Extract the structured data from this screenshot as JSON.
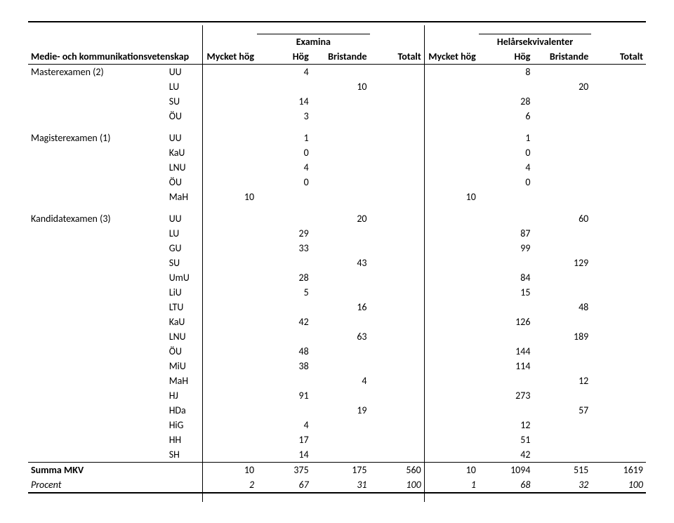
{
  "header": {
    "group1": "Examina",
    "group2": "Helårsekvivalenter",
    "title": "Medie- och kommunikationsvetenskap",
    "cols": [
      "Mycket hög",
      "Hög",
      "Bristande",
      "Totalt",
      "Mycket hög",
      "Hög",
      "Bristande",
      "Totalt"
    ]
  },
  "sections": [
    {
      "name": "Masterexamen (2)",
      "rows": [
        {
          "uni": "UU",
          "v": [
            "",
            "4",
            "",
            "",
            "",
            "8",
            "",
            ""
          ]
        },
        {
          "uni": "LU",
          "v": [
            "",
            "",
            "10",
            "",
            "",
            "",
            "20",
            ""
          ]
        },
        {
          "uni": "SU",
          "v": [
            "",
            "14",
            "",
            "",
            "",
            "28",
            "",
            ""
          ]
        },
        {
          "uni": "ÖU",
          "v": [
            "",
            "3",
            "",
            "",
            "",
            "6",
            "",
            ""
          ]
        }
      ]
    },
    {
      "name": "Magisterexamen (1)",
      "rows": [
        {
          "uni": "UU",
          "v": [
            "",
            "1",
            "",
            "",
            "",
            "1",
            "",
            ""
          ]
        },
        {
          "uni": "KaU",
          "v": [
            "",
            "0",
            "",
            "",
            "",
            "0",
            "",
            ""
          ]
        },
        {
          "uni": "LNU",
          "v": [
            "",
            "4",
            "",
            "",
            "",
            "4",
            "",
            ""
          ]
        },
        {
          "uni": "ÖU",
          "v": [
            "",
            "0",
            "",
            "",
            "",
            "0",
            "",
            ""
          ]
        },
        {
          "uni": "MaH",
          "v": [
            "10",
            "",
            "",
            "",
            "10",
            "",
            "",
            ""
          ]
        }
      ]
    },
    {
      "name": "Kandidatexamen (3)",
      "rows": [
        {
          "uni": "UU",
          "v": [
            "",
            "",
            "20",
            "",
            "",
            "",
            "60",
            ""
          ]
        },
        {
          "uni": "LU",
          "v": [
            "",
            "29",
            "",
            "",
            "",
            "87",
            "",
            ""
          ]
        },
        {
          "uni": "GU",
          "v": [
            "",
            "33",
            "",
            "",
            "",
            "99",
            "",
            ""
          ]
        },
        {
          "uni": "SU",
          "v": [
            "",
            "",
            "43",
            "",
            "",
            "",
            "129",
            ""
          ]
        },
        {
          "uni": "UmU",
          "v": [
            "",
            "28",
            "",
            "",
            "",
            "84",
            "",
            ""
          ]
        },
        {
          "uni": "LiU",
          "v": [
            "",
            "5",
            "",
            "",
            "",
            "15",
            "",
            ""
          ]
        },
        {
          "uni": "LTU",
          "v": [
            "",
            "",
            "16",
            "",
            "",
            "",
            "48",
            ""
          ]
        },
        {
          "uni": "KaU",
          "v": [
            "",
            "42",
            "",
            "",
            "",
            "126",
            "",
            ""
          ]
        },
        {
          "uni": "LNU",
          "v": [
            "",
            "",
            "63",
            "",
            "",
            "",
            "189",
            ""
          ]
        },
        {
          "uni": "ÖU",
          "v": [
            "",
            "48",
            "",
            "",
            "",
            "144",
            "",
            ""
          ]
        },
        {
          "uni": "MiU",
          "v": [
            "",
            "38",
            "",
            "",
            "",
            "114",
            "",
            ""
          ]
        },
        {
          "uni": "MaH",
          "v": [
            "",
            "",
            "4",
            "",
            "",
            "",
            "12",
            ""
          ]
        },
        {
          "uni": "HJ",
          "v": [
            "",
            "91",
            "",
            "",
            "",
            "273",
            "",
            ""
          ]
        },
        {
          "uni": "HDa",
          "v": [
            "",
            "",
            "19",
            "",
            "",
            "",
            "57",
            ""
          ]
        },
        {
          "uni": "HiG",
          "v": [
            "",
            "4",
            "",
            "",
            "",
            "12",
            "",
            ""
          ]
        },
        {
          "uni": "HH",
          "v": [
            "",
            "17",
            "",
            "",
            "",
            "51",
            "",
            ""
          ]
        },
        {
          "uni": "SH",
          "v": [
            "",
            "14",
            "",
            "",
            "",
            "42",
            "",
            ""
          ]
        }
      ]
    }
  ],
  "totals": {
    "label": "Summa MKV",
    "values": [
      "10",
      "375",
      "175",
      "560",
      "10",
      "1094",
      "515",
      "1619"
    ]
  },
  "percent": {
    "label": "Procent",
    "values": [
      "2",
      "67",
      "31",
      "100",
      "1",
      "68",
      "32",
      "100"
    ]
  }
}
